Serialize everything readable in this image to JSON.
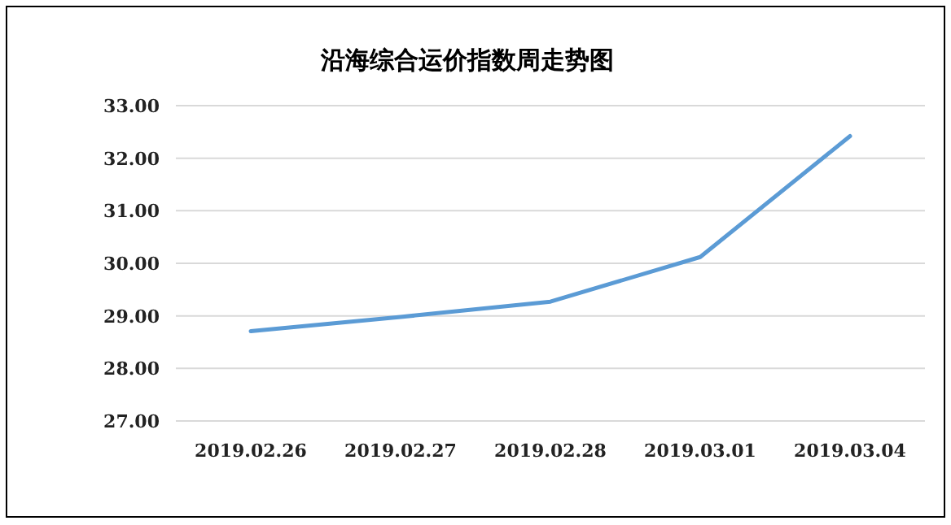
{
  "chart_data": {
    "type": "line",
    "title": "沿海综合运价指数周走势图",
    "categories": [
      "2019.02.26",
      "2019.02.27",
      "2019.02.28",
      "2019.03.01",
      "2019.03.04"
    ],
    "series": [
      {
        "color": "#5b9bd5",
        "values": [
          28.71,
          28.98,
          29.27,
          30.12,
          32.42
        ]
      }
    ],
    "ylim": [
      27,
      33
    ],
    "yticks": [
      {
        "value": 27,
        "label": "27.00"
      },
      {
        "value": 28,
        "label": "28.00"
      },
      {
        "value": 29,
        "label": "29.00"
      },
      {
        "value": 30,
        "label": "30.00"
      },
      {
        "value": 31,
        "label": "31.00"
      },
      {
        "value": 32,
        "label": "32.00"
      },
      {
        "value": 33,
        "label": "33.00"
      }
    ],
    "grid": "y"
  }
}
